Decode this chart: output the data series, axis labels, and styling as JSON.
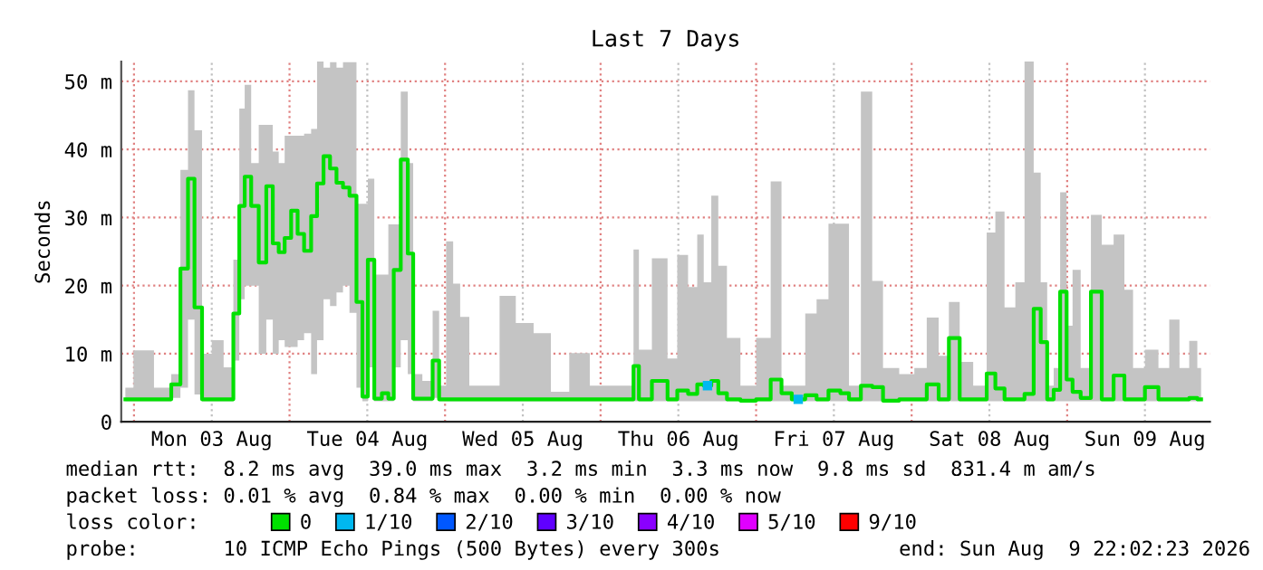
{
  "chart_data": {
    "type": "step",
    "title": "Last 7 Days",
    "ylabel": "Seconds",
    "x": [
      "2026-08-02T22:40",
      "2026-08-03T01:10",
      "2026-08-03T05:00",
      "2026-08-03T06:30",
      "2026-08-03T07:50",
      "2026-08-03T08:50",
      "2026-08-03T09:50",
      "2026-08-03T11:10",
      "2026-08-03T12:50",
      "2026-08-03T14:50",
      "2026-08-03T15:50",
      "2026-08-03T16:40",
      "2026-08-03T17:30",
      "2026-08-03T18:40",
      "2026-08-03T19:50",
      "2026-08-03T21:00",
      "2026-08-03T21:50",
      "2026-08-03T22:50",
      "2026-08-03T23:40",
      "2026-08-04T00:50",
      "2026-08-04T01:40",
      "2026-08-04T02:50",
      "2026-08-04T03:50",
      "2026-08-04T04:40",
      "2026-08-04T05:50",
      "2026-08-04T06:40",
      "2026-08-04T07:50",
      "2026-08-04T08:40",
      "2026-08-04T09:50",
      "2026-08-04T10:50",
      "2026-08-04T11:40",
      "2026-08-04T12:30",
      "2026-08-04T13:40",
      "2026-08-04T14:50",
      "2026-08-04T15:40",
      "2026-08-04T16:30",
      "2026-08-04T17:50",
      "2026-08-04T18:40",
      "2026-08-04T19:30",
      "2026-08-04T21:30",
      "2026-08-04T22:40",
      "2026-08-04T23:30",
      "2026-08-05T00:50",
      "2026-08-05T01:40",
      "2026-08-05T03:00",
      "2026-08-05T04:30",
      "2026-08-05T07:20",
      "2026-08-05T09:30",
      "2026-08-05T12:20",
      "2026-08-05T15:00",
      "2026-08-05T17:40",
      "2026-08-05T20:40",
      "2026-08-06T00:00",
      "2026-08-06T04:40",
      "2026-08-06T05:30",
      "2026-08-06T06:20",
      "2026-08-06T09:30",
      "2026-08-06T11:10",
      "2026-08-06T12:30",
      "2026-08-06T14:30",
      "2026-08-06T15:20",
      "2026-08-06T16:30",
      "2026-08-06T17:40",
      "2026-08-06T18:40",
      "2026-08-06T20:20",
      "2026-08-06T22:50",
      "2026-08-07T01:10",
      "2026-08-07T03:20",
      "2026-08-07T04:30",
      "2026-08-07T06:30",
      "2026-08-07T08:40",
      "2026-08-07T10:00",
      "2026-08-07T12:20",
      "2026-08-07T13:40",
      "2026-08-07T15:00",
      "2026-08-07T17:20",
      "2026-08-07T18:30",
      "2026-08-07T20:40",
      "2026-08-07T23:30",
      "2026-08-08T01:20",
      "2026-08-08T03:20",
      "2026-08-08T05:00",
      "2026-08-08T06:30",
      "2026-08-08T08:20",
      "2026-08-08T10:40",
      "2026-08-08T12:30",
      "2026-08-08T13:20",
      "2026-08-08T15:20",
      "2026-08-08T16:40",
      "2026-08-08T18:10",
      "2026-08-08T19:30",
      "2026-08-08T20:20",
      "2026-08-08T21:30",
      "2026-08-08T22:20",
      "2026-08-08T23:30",
      "2026-08-09T00:20",
      "2026-08-09T01:20",
      "2026-08-09T02:50",
      "2026-08-09T04:30",
      "2026-08-09T06:10",
      "2026-08-09T08:10",
      "2026-08-09T09:30",
      "2026-08-09T10:50",
      "2026-08-09T13:10",
      "2026-08-09T15:00",
      "2026-08-09T16:30",
      "2026-08-09T18:10",
      "2026-08-09T19:30",
      "2026-08-09T20:40"
    ],
    "series": [
      {
        "name": "0",
        "color": "#00e000",
        "values": [
          3.3,
          3.3,
          3.3,
          5.5,
          22.5,
          35.7,
          16.8,
          3.3,
          3.3,
          3.3,
          15.9,
          31.7,
          36,
          31.7,
          23.4,
          34.6,
          26.2,
          24.9,
          27,
          31,
          27.6,
          25.1,
          30.2,
          35,
          39,
          37.2,
          35.1,
          34.4,
          33.2,
          17.6,
          3.7,
          23.8,
          3.4,
          4.2,
          3.4,
          22.3,
          38.5,
          24.7,
          3.4,
          3.4,
          9,
          3.3,
          3.3,
          3.3,
          3.3,
          3.3,
          3.3,
          3.3,
          3.3,
          3.3,
          3.3,
          3.3,
          3.3,
          3.3,
          8.2,
          3.3,
          6,
          3.3,
          4.6,
          4.1,
          5.5,
          5.3,
          6,
          4.2,
          3.3,
          3.1,
          3.3,
          6.2,
          4.2,
          3.3,
          3.9,
          3.3,
          4.6,
          4.2,
          3.3,
          5.3,
          5.1,
          3.1,
          3.3,
          3.3,
          5.5,
          3.3,
          12.3,
          3.3,
          3.3,
          7.1,
          4.9,
          3.3,
          3.3,
          4.1,
          16.6,
          11.7,
          3.3,
          4.7,
          19.1,
          6.2,
          4.4,
          3.5,
          19.1,
          3.3,
          6.8,
          3.3,
          3.3,
          5.1,
          3.3,
          3.3,
          3.3,
          3.5,
          3.3
        ],
        "lower": [
          3,
          3,
          3,
          3.5,
          5,
          15,
          4,
          3,
          3,
          3,
          9,
          18,
          20,
          20,
          10,
          15,
          10,
          12,
          11,
          11,
          12,
          13,
          7,
          12,
          18,
          17,
          19,
          20,
          16,
          5,
          3,
          8,
          3,
          3,
          3,
          8,
          12,
          7,
          3,
          3,
          3.5,
          3,
          3,
          3,
          3,
          3,
          3,
          3,
          3,
          3,
          3,
          3,
          3,
          3,
          3,
          3,
          3,
          3,
          3,
          3,
          3,
          3,
          3,
          3,
          3,
          3,
          3,
          3,
          3,
          3,
          3,
          3,
          3,
          3,
          3,
          3,
          3,
          3,
          3,
          3,
          3,
          3,
          3,
          3,
          3,
          3,
          3,
          3,
          3,
          3,
          3,
          3,
          3,
          3,
          3,
          3,
          3,
          3,
          3,
          3,
          3,
          3,
          3,
          3,
          3,
          3,
          3,
          3,
          3
        ],
        "upper": [
          5,
          10.5,
          5,
          7,
          37,
          48.7,
          42.8,
          10,
          12,
          8,
          23.8,
          46,
          49.5,
          38,
          43.6,
          43.6,
          39.7,
          38,
          42,
          42,
          42,
          42.3,
          43,
          52.9,
          52,
          52.8,
          52,
          52.8,
          52.8,
          32,
          32,
          35.7,
          21.6,
          21.6,
          29,
          29,
          48.5,
          38,
          7,
          6,
          16.3,
          5.3,
          26.5,
          20.3,
          15.4,
          5.3,
          5.3,
          18.5,
          14.5,
          13,
          4.4,
          10.1,
          5.3,
          5.3,
          25.3,
          10.6,
          24,
          9.3,
          24.5,
          19.8,
          27.5,
          20.5,
          33.2,
          22.9,
          12.3,
          5.3,
          12.3,
          35.3,
          5.3,
          5.3,
          15.9,
          18,
          29.1,
          29.1,
          5.3,
          48.5,
          20.7,
          7.9,
          7,
          7.9,
          15.3,
          9.7,
          17.6,
          8.8,
          5.3,
          27.8,
          30.9,
          16.8,
          20.5,
          52.9,
          36.6,
          20.5,
          5.3,
          7.9,
          33.7,
          14.1,
          22.3,
          7.9,
          30.4,
          26,
          27.5,
          19.4,
          7.9,
          10.6,
          7.9,
          15,
          7.9,
          11.9,
          7.9
        ]
      },
      {
        "name": "1/10",
        "color": "#00b8f0",
        "type": "scatter",
        "values": [
          null,
          null,
          null,
          null,
          null,
          null,
          null,
          null,
          null,
          null,
          null,
          null,
          null,
          null,
          null,
          null,
          null,
          null,
          null,
          null,
          null,
          null,
          null,
          null,
          null,
          null,
          null,
          null,
          null,
          null,
          null,
          null,
          null,
          null,
          null,
          null,
          null,
          null,
          null,
          null,
          null,
          null,
          null,
          null,
          null,
          null,
          null,
          null,
          null,
          null,
          null,
          null,
          null,
          null,
          null,
          null,
          null,
          null,
          null,
          null,
          null,
          5.3,
          null,
          null,
          null,
          null,
          null,
          null,
          null,
          3.3,
          null,
          null,
          null,
          null,
          null,
          null,
          null,
          null,
          null,
          null,
          null,
          null,
          null,
          null,
          null,
          null,
          null,
          null,
          null,
          null,
          null,
          null,
          null,
          null,
          null,
          null,
          null,
          null,
          null,
          null,
          null,
          null,
          null,
          null,
          null,
          null,
          null,
          null,
          null
        ]
      },
      {
        "name": "2/10",
        "color": "#0058ff",
        "type": "scatter",
        "values": [
          null,
          null,
          null,
          null,
          null,
          null,
          null,
          null,
          null,
          null,
          null,
          null,
          null,
          null,
          null,
          null,
          null,
          null,
          null,
          null,
          null,
          null,
          null,
          null,
          null,
          null,
          null,
          null,
          null,
          null,
          null,
          null,
          null,
          null,
          null,
          null,
          null,
          null,
          null,
          null,
          null,
          null,
          null,
          null,
          null,
          null,
          null,
          null,
          null,
          null,
          null,
          null,
          null,
          null,
          null,
          null,
          null,
          null,
          null,
          null,
          null,
          null,
          null,
          null,
          null,
          null,
          null,
          null,
          null,
          null,
          null,
          null,
          null,
          null,
          null,
          null,
          null,
          null,
          null,
          null,
          null,
          null,
          null,
          null,
          null,
          null,
          null,
          null,
          null,
          null,
          null,
          null,
          null,
          null,
          null,
          null,
          null,
          null,
          null,
          null,
          null,
          null,
          null,
          null,
          null,
          null,
          null,
          null,
          null
        ]
      },
      {
        "name": "3/10",
        "color": "#6000ff",
        "type": "scatter",
        "values": [
          null,
          null,
          null,
          null,
          null,
          null,
          null,
          null,
          null,
          null,
          null,
          null,
          null,
          null,
          null,
          null,
          null,
          null,
          null,
          null,
          null,
          null,
          null,
          null,
          null,
          null,
          null,
          null,
          null,
          null,
          null,
          null,
          null,
          null,
          null,
          null,
          null,
          null,
          null,
          null,
          null,
          null,
          null,
          null,
          null,
          null,
          null,
          null,
          null,
          null,
          null,
          null,
          null,
          null,
          null,
          null,
          null,
          null,
          null,
          null,
          null,
          null,
          null,
          null,
          null,
          null,
          null,
          null,
          null,
          null,
          null,
          null,
          null,
          null,
          null,
          null,
          null,
          null,
          null,
          null,
          null,
          null,
          null,
          null,
          null,
          null,
          null,
          null,
          null,
          null,
          null,
          null,
          null,
          null,
          null,
          null,
          null,
          null,
          null,
          null,
          null,
          null,
          null,
          null,
          null,
          null,
          null,
          null,
          null
        ]
      },
      {
        "name": "4/10",
        "color": "#8a00ff",
        "type": "scatter",
        "values": [
          null,
          null,
          null,
          null,
          null,
          null,
          null,
          null,
          null,
          null,
          null,
          null,
          null,
          null,
          null,
          null,
          null,
          null,
          null,
          null,
          null,
          null,
          null,
          null,
          null,
          null,
          null,
          null,
          null,
          null,
          null,
          null,
          null,
          null,
          null,
          null,
          null,
          null,
          null,
          null,
          null,
          null,
          null,
          null,
          null,
          null,
          null,
          null,
          null,
          null,
          null,
          null,
          null,
          null,
          null,
          null,
          null,
          null,
          null,
          null,
          null,
          null,
          null,
          null,
          null,
          null,
          null,
          null,
          null,
          null,
          null,
          null,
          null,
          null,
          null,
          null,
          null,
          null,
          null,
          null,
          null,
          null,
          null,
          null,
          null,
          null,
          null,
          null,
          null,
          null,
          null,
          null,
          null,
          null,
          null,
          null,
          null,
          null,
          null,
          null,
          null,
          null,
          null,
          null,
          null,
          null,
          null,
          null,
          null
        ]
      },
      {
        "name": "5/10",
        "color": "#e000ff",
        "type": "scatter",
        "values": [
          null,
          null,
          null,
          null,
          null,
          null,
          null,
          null,
          null,
          null,
          null,
          null,
          null,
          null,
          null,
          null,
          null,
          null,
          null,
          null,
          null,
          null,
          null,
          null,
          null,
          null,
          null,
          null,
          null,
          null,
          null,
          null,
          null,
          null,
          null,
          null,
          null,
          null,
          null,
          null,
          null,
          null,
          null,
          null,
          null,
          null,
          null,
          null,
          null,
          null,
          null,
          null,
          null,
          null,
          null,
          null,
          null,
          null,
          null,
          null,
          null,
          null,
          null,
          null,
          null,
          null,
          null,
          null,
          null,
          null,
          null,
          null,
          null,
          null,
          null,
          null,
          null,
          null,
          null,
          null,
          null,
          null,
          null,
          null,
          null,
          null,
          null,
          null,
          null,
          null,
          null,
          null,
          null,
          null,
          null,
          null,
          null,
          null,
          null,
          null,
          null,
          null,
          null,
          null,
          null,
          null,
          null,
          null,
          null
        ]
      },
      {
        "name": "9/10",
        "color": "#ff0000",
        "type": "scatter",
        "values": [
          null,
          null,
          null,
          null,
          null,
          null,
          null,
          null,
          null,
          null,
          null,
          null,
          null,
          null,
          null,
          null,
          null,
          null,
          null,
          null,
          null,
          null,
          null,
          null,
          null,
          null,
          null,
          null,
          null,
          null,
          null,
          null,
          null,
          null,
          null,
          null,
          null,
          null,
          null,
          null,
          null,
          null,
          null,
          null,
          null,
          null,
          null,
          null,
          null,
          null,
          null,
          null,
          null,
          null,
          null,
          null,
          null,
          null,
          null,
          null,
          null,
          null,
          null,
          null,
          null,
          null,
          null,
          null,
          null,
          null,
          null,
          null,
          null,
          null,
          null,
          null,
          null,
          null,
          null,
          null,
          null,
          null,
          null,
          null,
          null,
          null,
          null,
          null,
          null,
          null,
          null,
          null,
          null,
          null,
          null,
          null,
          null,
          null,
          null,
          null,
          null,
          null,
          null,
          null,
          null,
          null,
          null,
          null,
          null
        ]
      }
    ],
    "xlim": [
      "2026-08-02T22:02",
      "2026-08-09T22:02"
    ],
    "xticks": [
      {
        "value": "2026-08-03T00:00",
        "label": null
      },
      {
        "value": "2026-08-03T12:00",
        "label": "Mon 03 Aug"
      },
      {
        "value": "2026-08-04T00:00",
        "label": null
      },
      {
        "value": "2026-08-04T12:00",
        "label": "Tue 04 Aug"
      },
      {
        "value": "2026-08-05T00:00",
        "label": null
      },
      {
        "value": "2026-08-05T12:00",
        "label": "Wed 05 Aug"
      },
      {
        "value": "2026-08-06T00:00",
        "label": null
      },
      {
        "value": "2026-08-06T12:00",
        "label": "Thu 06 Aug"
      },
      {
        "value": "2026-08-07T00:00",
        "label": null
      },
      {
        "value": "2026-08-07T12:00",
        "label": "Fri 07 Aug"
      },
      {
        "value": "2026-08-08T00:00",
        "label": null
      },
      {
        "value": "2026-08-08T12:00",
        "label": "Sat 08 Aug"
      },
      {
        "value": "2026-08-09T00:00",
        "label": null
      },
      {
        "value": "2026-08-09T12:00",
        "label": "Sun 09 Aug"
      }
    ],
    "ylim": [
      0,
      52.9
    ],
    "yticks": [
      0,
      {
        "value": 10,
        "label": "10 m"
      },
      {
        "value": 20,
        "label": "20 m"
      },
      {
        "value": 30,
        "label": "30 m"
      },
      {
        "value": 40,
        "label": "40 m"
      },
      {
        "value": 50,
        "label": "50 m"
      }
    ],
    "grid": true,
    "legend": "bottom",
    "line_style": "solid",
    "legend_title": "loss color:",
    "annotations": [
      "median rtt:  8.2 ms avg  39.0 ms max  3.2 ms min  3.3 ms now  9.8 ms sd  831.4 m am/s",
      "packet loss: 0.01 % avg  0.84 % max  0.00 % min  0.00 % now",
      "probe:       10 ICMP Echo Pings (500 Bytes) every 300s",
      "end: Sun Aug  9 22:02:23 2026"
    ]
  }
}
